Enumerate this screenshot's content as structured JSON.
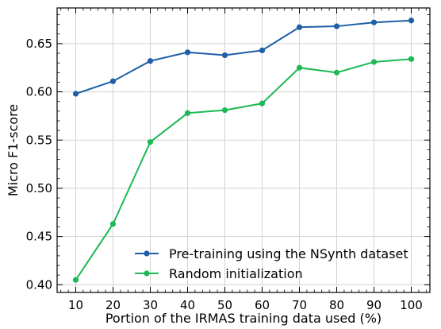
{
  "chart_data": {
    "type": "line",
    "title": "",
    "xlabel": "Portion of the IRMAS training data used (%)",
    "ylabel": "Micro F1-score",
    "x": [
      10,
      20,
      30,
      40,
      50,
      60,
      70,
      80,
      90,
      100
    ],
    "xticks": [
      "10",
      "20",
      "30",
      "40",
      "50",
      "60",
      "70",
      "80",
      "90",
      "100"
    ],
    "yticks": [
      "0.40",
      "0.45",
      "0.50",
      "0.55",
      "0.60",
      "0.65"
    ],
    "xlim": [
      5,
      105
    ],
    "ylim": [
      0.392,
      0.687
    ],
    "grid": true,
    "legend_position": "lower-right",
    "series": [
      {
        "name": "Pre-training using the NSynth dataset",
        "color": "#1f5fa6",
        "values": [
          0.598,
          0.611,
          0.632,
          0.641,
          0.638,
          0.643,
          0.667,
          0.668,
          0.672,
          0.674
        ]
      },
      {
        "name": "Random initialization",
        "color": "#1db954",
        "values": [
          0.405,
          0.463,
          0.548,
          0.578,
          0.581,
          0.588,
          0.625,
          0.62,
          0.631,
          0.634
        ]
      }
    ]
  }
}
